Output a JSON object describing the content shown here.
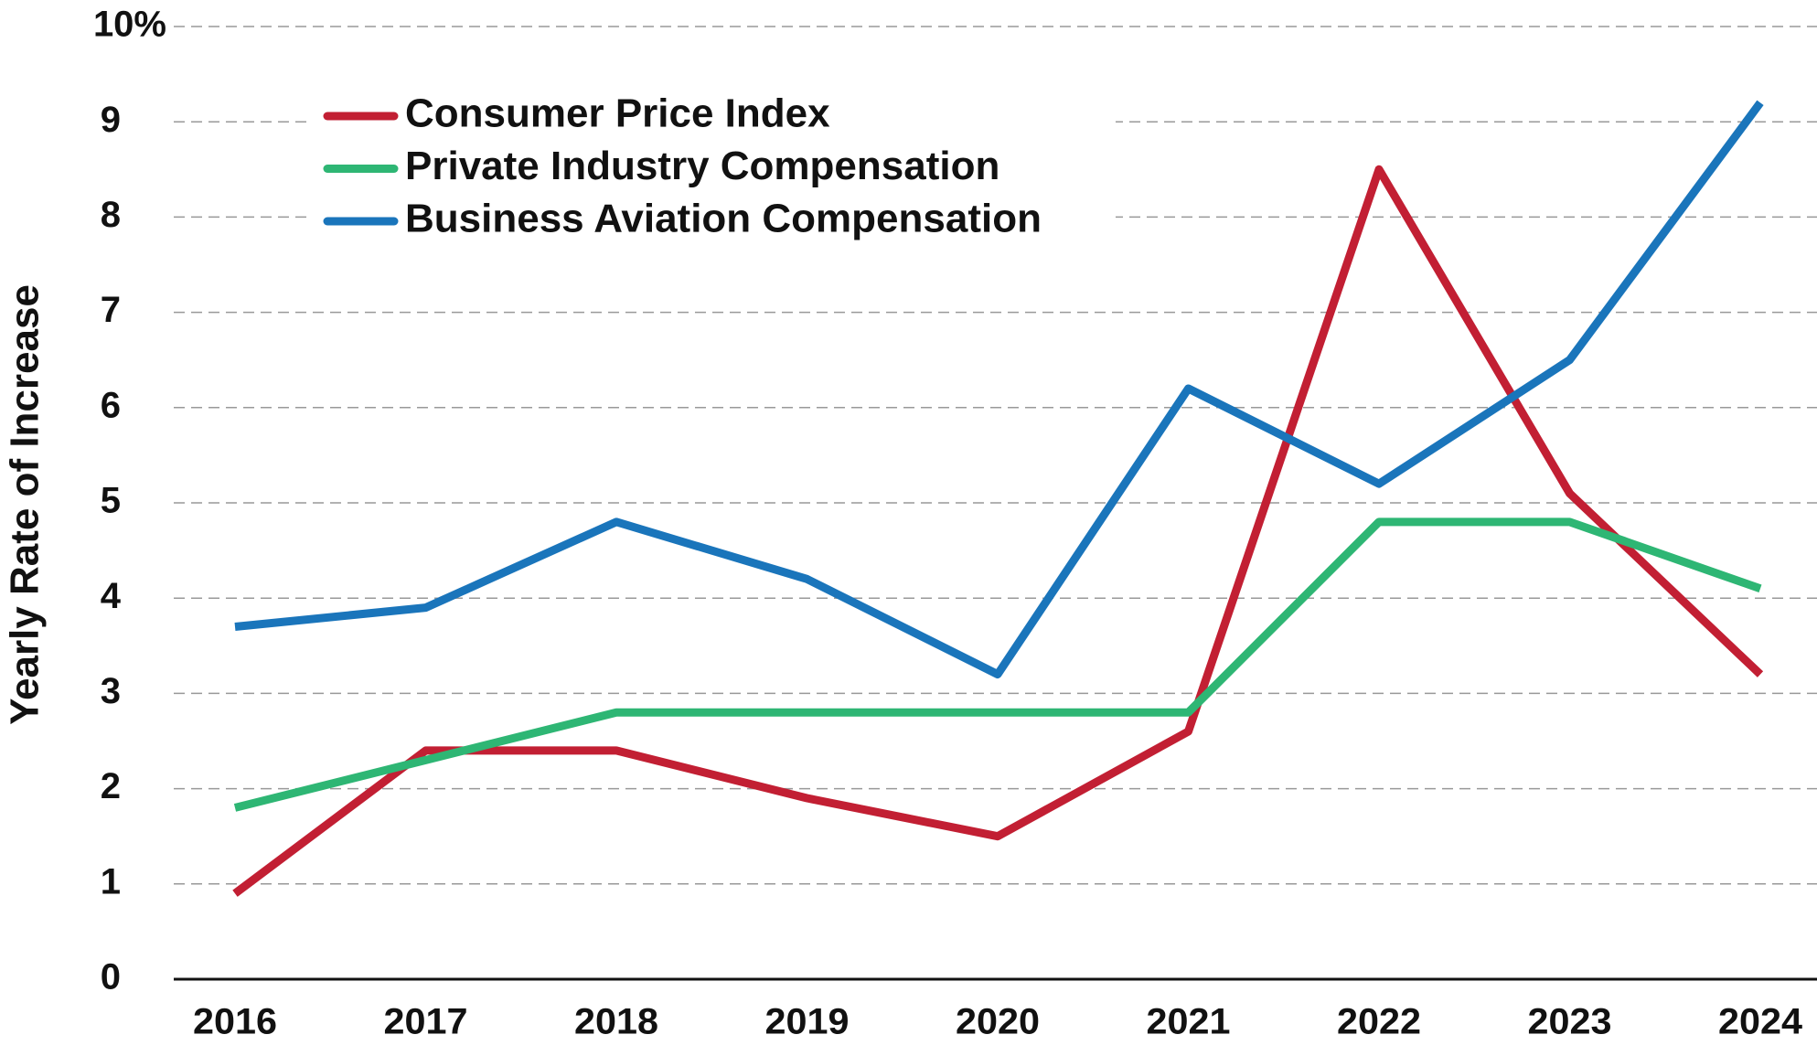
{
  "chart_data": {
    "type": "line",
    "y_label": "Yearly Rate of Increase",
    "categories": [
      "2016",
      "2017",
      "2018",
      "2019",
      "2020",
      "2021",
      "2022",
      "2023",
      "2024"
    ],
    "series": [
      {
        "name": "Consumer Price Index",
        "color": "#c21f33",
        "values": [
          0.9,
          2.4,
          2.4,
          1.9,
          1.5,
          2.6,
          8.5,
          5.1,
          3.2
        ]
      },
      {
        "name": "Private Industry Compensation",
        "color": "#2eb674",
        "values": [
          1.8,
          2.3,
          2.8,
          2.8,
          2.8,
          2.8,
          4.8,
          4.8,
          4.1
        ]
      },
      {
        "name": "Business Aviation Compensation",
        "color": "#1a75bb",
        "values": [
          3.7,
          3.9,
          4.8,
          4.2,
          3.2,
          6.2,
          5.2,
          6.5,
          9.2
        ]
      }
    ],
    "ylim": [
      0,
      10
    ],
    "yticks": [
      0,
      1,
      2,
      3,
      4,
      5,
      6,
      7,
      8,
      9,
      {
        "value": 10,
        "label": "10%"
      }
    ],
    "grid": true,
    "legend": "upper left"
  }
}
